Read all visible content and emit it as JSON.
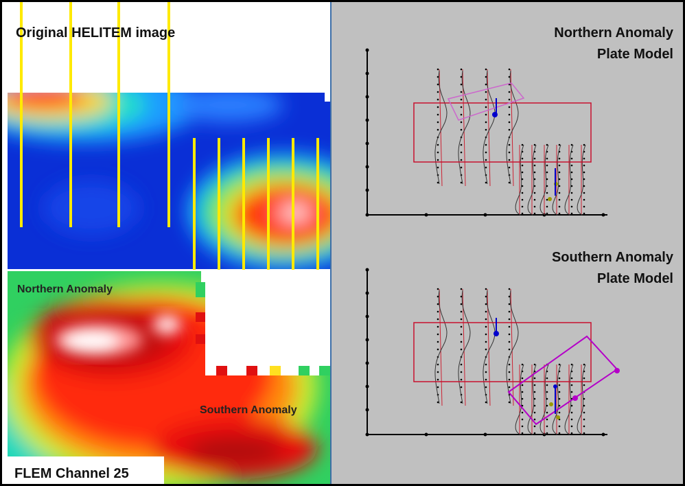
{
  "helitem_panel": {
    "title": "Original HELITEM image"
  },
  "flem_panel": {
    "title": "FLEM Channel 25",
    "northern_label": "Northern Anomaly",
    "southern_label": "Southern Anomaly"
  },
  "north_plate": {
    "title_line1": "Northern Anomaly",
    "title_line2": "Plate Model"
  },
  "south_plate": {
    "title_line1": "Southern Anomaly",
    "title_line2": "Plate Model"
  },
  "colors": {
    "flight_line": "#ffea00",
    "plate_outline": "#c8102e",
    "north_plate": "#cc66cc",
    "south_plate": "#b400c8",
    "panel_gray": "#c0c0c0",
    "divider": "#3c6ea8"
  },
  "icons": [
    "flight-line",
    "profile-curve",
    "plate-rectangle",
    "dip-marker"
  ]
}
